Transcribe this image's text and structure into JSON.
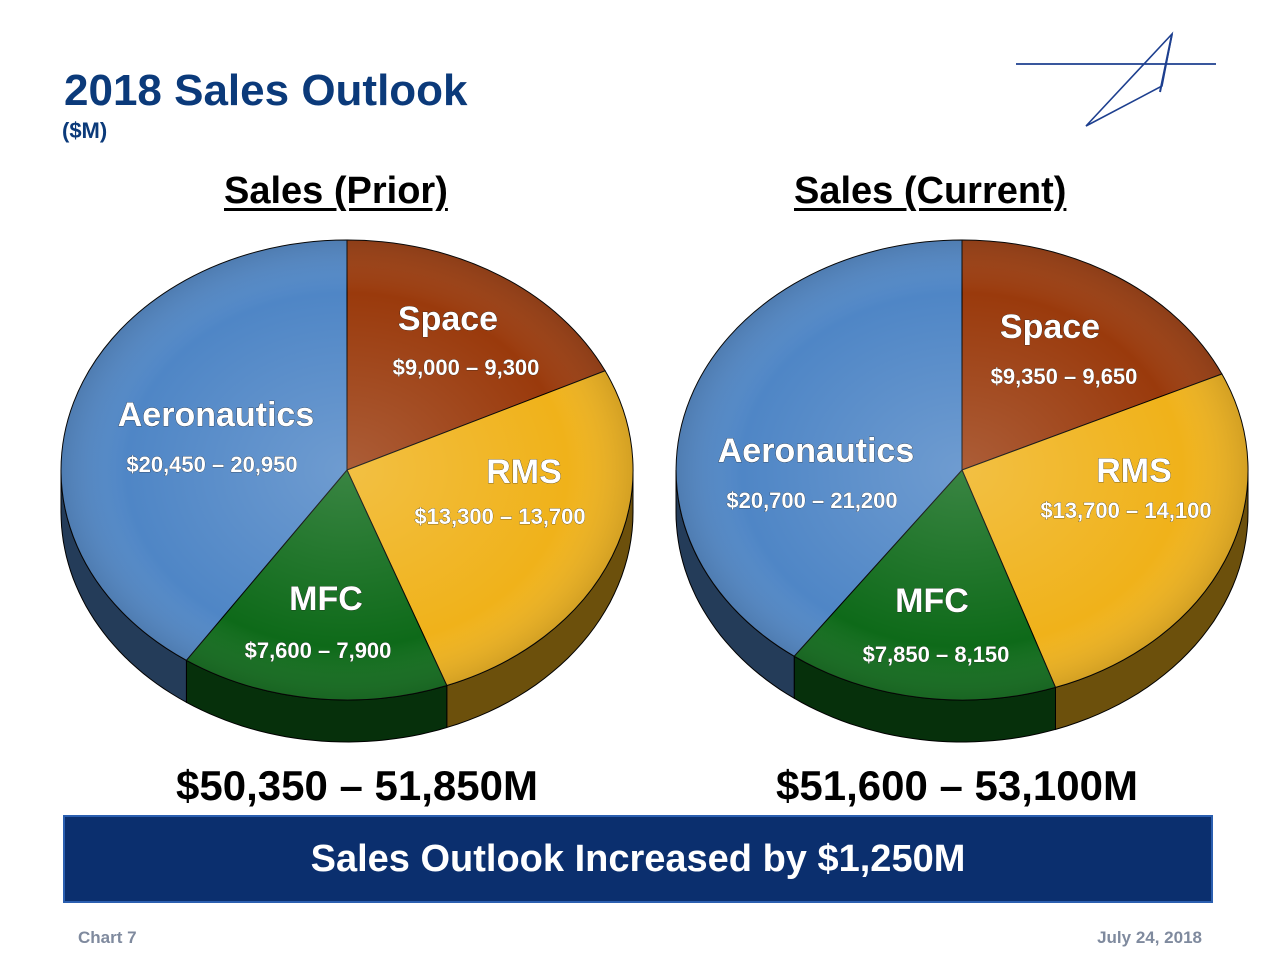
{
  "page": {
    "title": "2018 Sales Outlook",
    "subtitle": "($M)",
    "banner": "Sales Outlook Increased by $1,250M",
    "footer_left": "Chart 7",
    "footer_right": "July 24, 2018",
    "colors": {
      "title": "#0b3a7a",
      "banner_bg": "#0b2f6e",
      "Aeronautics": "#4f86c6",
      "Space": "#9a3a0c",
      "RMS": "#f0b21a",
      "MFC": "#0e6a19"
    }
  },
  "chart_data": [
    {
      "type": "pie",
      "title": "Sales (Prior)",
      "total_label": "$50,350 – 51,850M",
      "slices": [
        {
          "name": "Space",
          "value_label": "$9,000 – 9,300",
          "low": 9000,
          "high": 9300,
          "color": "#9a3a0c"
        },
        {
          "name": "RMS",
          "value_label": "$13,300 – 13,700",
          "low": 13300,
          "high": 13700,
          "color": "#f0b21a"
        },
        {
          "name": "MFC",
          "value_label": "$7,600 – 7,900",
          "low": 7600,
          "high": 7900,
          "color": "#0e6a19"
        },
        {
          "name": "Aeronautics",
          "value_label": "$20,450 – 20,950",
          "low": 20450,
          "high": 20950,
          "color": "#4f86c6"
        }
      ]
    },
    {
      "type": "pie",
      "title": "Sales (Current)",
      "total_label": "$51,600 – 53,100M",
      "slices": [
        {
          "name": "Space",
          "value_label": "$9,350 – 9,650",
          "low": 9350,
          "high": 9650,
          "color": "#9a3a0c"
        },
        {
          "name": "RMS",
          "value_label": "$13,700 – 14,100",
          "low": 13700,
          "high": 14100,
          "color": "#f0b21a"
        },
        {
          "name": "MFC",
          "value_label": "$7,850 – 8,150",
          "low": 7850,
          "high": 8150,
          "color": "#0e6a19"
        },
        {
          "name": "Aeronautics",
          "value_label": "$20,700 – 21,200",
          "low": 20700,
          "high": 21200,
          "color": "#4f86c6"
        }
      ]
    }
  ]
}
